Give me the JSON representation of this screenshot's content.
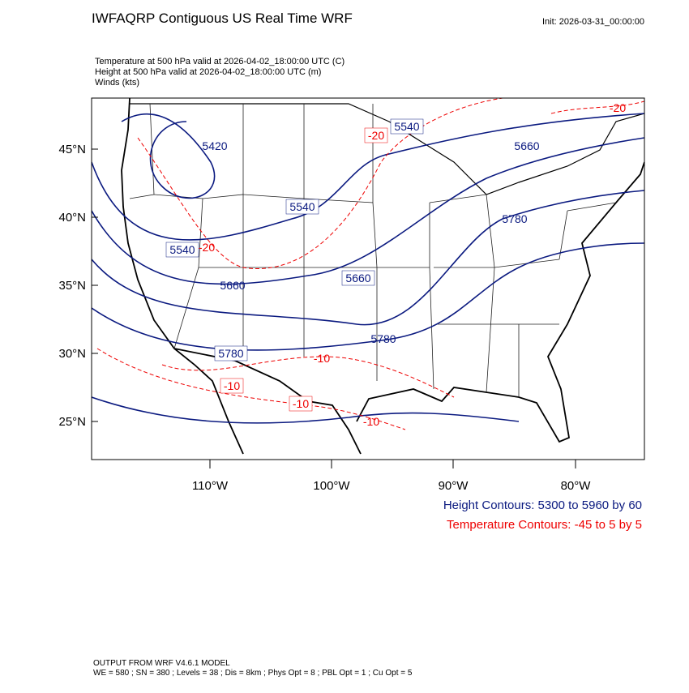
{
  "header": {
    "title": "IWFAQRP Contiguous US Real Time WRF",
    "init": "Init: 2026-03-31_00:00:00"
  },
  "fields": [
    "Temperature at 500 hPa valid at 2026-04-02_18:00:00 UTC   (C)",
    "Height at 500 hPa valid at 2026-04-02_18:00:00 UTC   (m)",
    "Winds   (kts)"
  ],
  "map": {
    "lat_labels": [
      "45°N",
      "40°N",
      "35°N",
      "30°N",
      "25°N"
    ],
    "lon_labels": [
      "110°W",
      "100°W",
      "90°W",
      "80°W"
    ],
    "height_labels": [
      "5540",
      "5420",
      "5660",
      "5540",
      "5780",
      "5540",
      "5660",
      "5660",
      "5780",
      "5780"
    ],
    "temperature_labels": [
      "-20",
      "-20",
      "-20",
      "-10",
      "-10",
      "-10",
      "-10"
    ]
  },
  "legend": {
    "height": "Height Contours: 5300 to 5960 by 60",
    "temperature": "Temperature Contours: -45 to 5 by 5"
  },
  "footer": [
    "OUTPUT FROM WRF V4.6.1 MODEL",
    "WE = 580 ; SN = 380 ; Levels = 38 ; Dis = 8km ; Phys Opt = 8 ; PBL Opt = 1 ; Cu Opt = 5"
  ]
}
